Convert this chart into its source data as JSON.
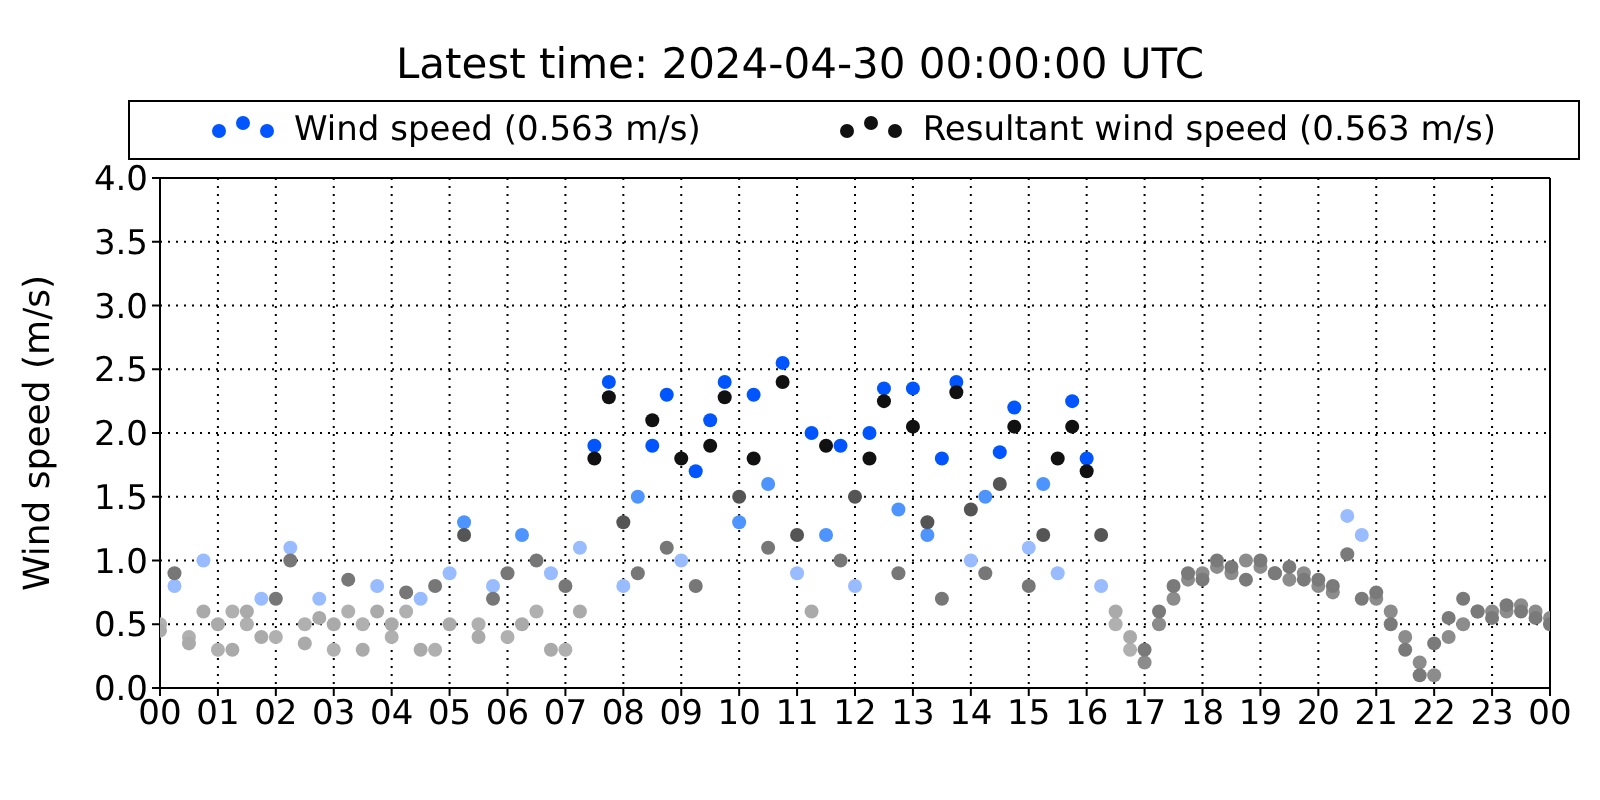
{
  "chart_data": {
    "type": "scatter",
    "title": "Latest time: 2024-04-30 00:00:00 UTC",
    "ylabel": "Wind speed (m/s)",
    "legend": "top",
    "marker": "circle",
    "grid": true,
    "xlim": [
      0,
      24
    ],
    "ylim": [
      0,
      4
    ],
    "xticks": [
      {
        "value": 0,
        "label": "00"
      },
      {
        "value": 1,
        "label": "01"
      },
      {
        "value": 2,
        "label": "02"
      },
      {
        "value": 3,
        "label": "03"
      },
      {
        "value": 4,
        "label": "04"
      },
      {
        "value": 5,
        "label": "05"
      },
      {
        "value": 6,
        "label": "06"
      },
      {
        "value": 7,
        "label": "07"
      },
      {
        "value": 8,
        "label": "08"
      },
      {
        "value": 9,
        "label": "09"
      },
      10,
      11,
      12,
      13,
      14,
      15,
      16,
      17,
      18,
      19,
      20,
      21,
      22,
      23,
      {
        "value": 24,
        "label": "00"
      }
    ],
    "yticks": [
      {
        "value": 0,
        "label": "0.0"
      },
      0.5,
      {
        "value": 1,
        "label": "1.0"
      },
      1.5,
      {
        "value": 2,
        "label": "2.0"
      },
      2.5,
      {
        "value": 3,
        "label": "3.0"
      },
      3.5,
      {
        "value": 4,
        "label": "4.0"
      }
    ],
    "x": [
      0,
      0.25,
      0.5,
      0.75,
      1,
      1.25,
      1.5,
      1.75,
      2,
      2.25,
      2.5,
      2.75,
      3,
      3.25,
      3.5,
      3.75,
      4,
      4.25,
      4.5,
      4.75,
      5,
      5.25,
      5.5,
      5.75,
      6,
      6.25,
      6.5,
      6.75,
      7,
      7.25,
      7.5,
      7.75,
      8,
      8.25,
      8.5,
      8.75,
      9,
      9.25,
      9.5,
      9.75,
      10,
      10.25,
      10.5,
      10.75,
      11,
      11.25,
      11.5,
      11.75,
      12,
      12.25,
      12.5,
      12.75,
      13,
      13.25,
      13.5,
      13.75,
      14,
      14.25,
      14.5,
      14.75,
      15,
      15.25,
      15.5,
      15.75,
      16,
      16.25,
      16.5,
      16.75,
      17,
      17.25,
      17.5,
      17.75,
      18,
      18.25,
      18.5,
      18.75,
      19,
      19.25,
      19.5,
      19.75,
      20,
      20.25,
      20.5,
      20.75,
      21,
      21.25,
      21.5,
      21.75,
      22,
      22.25,
      22.5,
      22.75,
      23,
      23.25,
      23.5,
      23.75,
      24
    ],
    "series": [
      {
        "name": "Wind speed (0.563 m/s)",
        "color": "#0055ff",
        "values": [
          0.5,
          0.8,
          0.4,
          1.0,
          0.3,
          0.6,
          0.5,
          0.7,
          0.4,
          1.1,
          0.5,
          0.7,
          0.3,
          0.6,
          0.5,
          0.8,
          0.4,
          0.6,
          0.7,
          0.3,
          0.9,
          1.3,
          0.5,
          0.8,
          0.4,
          1.2,
          0.6,
          0.9,
          0.3,
          1.1,
          1.9,
          2.4,
          0.8,
          1.5,
          1.9,
          2.3,
          1.0,
          1.7,
          2.1,
          2.4,
          1.3,
          2.3,
          1.6,
          2.55,
          0.9,
          2.0,
          1.2,
          1.9,
          0.8,
          2.0,
          2.35,
          1.4,
          2.35,
          1.2,
          1.8,
          2.4,
          1.0,
          1.5,
          1.85,
          2.2,
          1.1,
          1.6,
          0.9,
          2.25,
          1.8,
          0.8,
          0.5,
          0.3,
          0.2,
          0.5,
          0.7,
          0.85,
          0.9,
          0.95,
          0.9,
          1.0,
          0.95,
          0.9,
          0.85,
          0.9,
          0.8,
          0.75,
          1.35,
          1.2,
          0.7,
          0.6,
          0.4,
          0.2,
          0.1,
          0.4,
          0.5,
          0.6,
          0.6,
          0.6,
          0.65,
          0.6,
          0.55
        ],
        "colors": [
          "#b0b0b0",
          "#99bbff",
          "#b0b0b0",
          "#99bbff",
          "#b0b0b0",
          "#b0b0b0",
          "#b0b0b0",
          "#99bbff",
          "#b0b0b0",
          "#99bbff",
          "#b0b0b0",
          "#99bbff",
          "#b0b0b0",
          "#b0b0b0",
          "#b0b0b0",
          "#99bbff",
          "#b0b0b0",
          "#b0b0b0",
          "#99bbff",
          "#b0b0b0",
          "#99bbff",
          "#4d94ff",
          "#b0b0b0",
          "#99bbff",
          "#b0b0b0",
          "#4d94ff",
          "#b0b0b0",
          "#99bbff",
          "#b0b0b0",
          "#99bbff",
          "#0055ff",
          "#0055ff",
          "#99bbff",
          "#4d94ff",
          "#0055ff",
          "#0055ff",
          "#99bbff",
          "#0055ff",
          "#0055ff",
          "#0055ff",
          "#4d94ff",
          "#0055ff",
          "#4d94ff",
          "#0055ff",
          "#99bbff",
          "#0055ff",
          "#4d94ff",
          "#0055ff",
          "#99bbff",
          "#0055ff",
          "#0055ff",
          "#4d94ff",
          "#0055ff",
          "#4d94ff",
          "#0055ff",
          "#0055ff",
          "#99bbff",
          "#4d94ff",
          "#0055ff",
          "#0055ff",
          "#99bbff",
          "#4d94ff",
          "#99bbff",
          "#0055ff",
          "#0055ff",
          "#99bbff",
          "#b0b0b0",
          "#b0b0b0",
          "#8c8c8c",
          "#8c8c8c",
          "#8c8c8c",
          "#8c8c8c",
          "#8c8c8c",
          "#8c8c8c",
          "#8c8c8c",
          "#8c8c8c",
          "#8c8c8c",
          "#8c8c8c",
          "#8c8c8c",
          "#8c8c8c",
          "#8c8c8c",
          "#8c8c8c",
          "#99bbff",
          "#99bbff",
          "#8c8c8c",
          "#8c8c8c",
          "#8c8c8c",
          "#8c8c8c",
          "#8c8c8c",
          "#8c8c8c",
          "#8c8c8c",
          "#8c8c8c",
          "#8c8c8c",
          "#8c8c8c",
          "#8c8c8c",
          "#8c8c8c",
          "#8c8c8c"
        ]
      },
      {
        "name": "Resultant wind speed (0.563 m/s)",
        "color": "#111111",
        "values": [
          0.45,
          0.9,
          0.35,
          0.6,
          0.5,
          0.3,
          0.6,
          0.4,
          0.7,
          1.0,
          0.35,
          0.55,
          0.5,
          0.85,
          0.3,
          0.6,
          0.5,
          0.75,
          0.3,
          0.8,
          0.5,
          1.2,
          0.4,
          0.7,
          0.9,
          0.5,
          1.0,
          0.3,
          0.8,
          0.6,
          1.8,
          2.28,
          1.3,
          0.9,
          2.1,
          1.1,
          1.8,
          0.8,
          1.9,
          2.28,
          1.5,
          1.8,
          1.1,
          2.4,
          1.2,
          0.6,
          1.9,
          1.0,
          1.5,
          1.8,
          2.25,
          0.9,
          2.05,
          1.3,
          0.7,
          2.32,
          1.4,
          0.9,
          1.6,
          2.05,
          0.8,
          1.2,
          1.8,
          2.05,
          1.7,
          1.2,
          0.6,
          0.4,
          0.3,
          0.6,
          0.8,
          0.9,
          0.85,
          1.0,
          0.95,
          0.85,
          1.0,
          0.9,
          0.95,
          0.85,
          0.85,
          0.8,
          1.05,
          0.7,
          0.75,
          0.5,
          0.3,
          0.1,
          0.35,
          0.55,
          0.7,
          0.6,
          0.55,
          0.65,
          0.6,
          0.55,
          0.5
        ],
        "colors": [
          "#aaaaaa",
          "#777777",
          "#aaaaaa",
          "#aaaaaa",
          "#aaaaaa",
          "#aaaaaa",
          "#aaaaaa",
          "#aaaaaa",
          "#777777",
          "#777777",
          "#aaaaaa",
          "#aaaaaa",
          "#aaaaaa",
          "#777777",
          "#aaaaaa",
          "#aaaaaa",
          "#aaaaaa",
          "#777777",
          "#aaaaaa",
          "#777777",
          "#aaaaaa",
          "#555555",
          "#aaaaaa",
          "#777777",
          "#777777",
          "#aaaaaa",
          "#777777",
          "#aaaaaa",
          "#777777",
          "#aaaaaa",
          "#111111",
          "#111111",
          "#555555",
          "#777777",
          "#111111",
          "#777777",
          "#111111",
          "#777777",
          "#111111",
          "#111111",
          "#555555",
          "#111111",
          "#777777",
          "#111111",
          "#555555",
          "#aaaaaa",
          "#111111",
          "#777777",
          "#555555",
          "#111111",
          "#111111",
          "#777777",
          "#111111",
          "#555555",
          "#777777",
          "#111111",
          "#555555",
          "#777777",
          "#555555",
          "#111111",
          "#777777",
          "#555555",
          "#111111",
          "#111111",
          "#111111",
          "#555555",
          "#aaaaaa",
          "#aaaaaa",
          "#7a7a7a",
          "#7a7a7a",
          "#7a7a7a",
          "#7a7a7a",
          "#7a7a7a",
          "#7a7a7a",
          "#7a7a7a",
          "#7a7a7a",
          "#7a7a7a",
          "#7a7a7a",
          "#7a7a7a",
          "#7a7a7a",
          "#7a7a7a",
          "#7a7a7a",
          "#7a7a7a",
          "#7a7a7a",
          "#7a7a7a",
          "#7a7a7a",
          "#7a7a7a",
          "#7a7a7a",
          "#7a7a7a",
          "#7a7a7a",
          "#7a7a7a",
          "#7a7a7a",
          "#7a7a7a",
          "#7a7a7a",
          "#7a7a7a",
          "#7a7a7a",
          "#7a7a7a"
        ]
      }
    ]
  }
}
